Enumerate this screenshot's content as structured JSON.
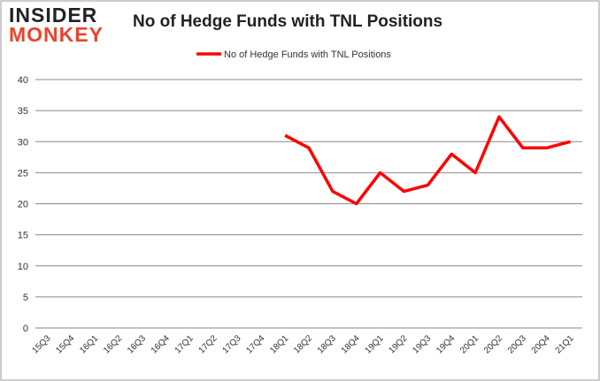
{
  "logo": {
    "line1": "INSIDER",
    "line2": "MONKEY"
  },
  "chart_data": {
    "type": "line",
    "title": "No of Hedge Funds with TNL Positions",
    "categories": [
      "15Q3",
      "15Q4",
      "16Q1",
      "16Q2",
      "16Q3",
      "16Q4",
      "17Q1",
      "17Q2",
      "17Q3",
      "17Q4",
      "18Q1",
      "18Q2",
      "18Q3",
      "18Q4",
      "19Q1",
      "19Q2",
      "19Q3",
      "19Q4",
      "20Q1",
      "20Q2",
      "20Q3",
      "20Q4",
      "21Q1"
    ],
    "series": [
      {
        "name": "No of Hedge Funds with TNL Positions",
        "color": "#ff0000",
        "values": [
          null,
          null,
          null,
          null,
          null,
          null,
          null,
          null,
          null,
          null,
          31,
          29,
          22,
          20,
          25,
          22,
          23,
          28,
          25,
          34,
          29,
          29,
          30
        ]
      }
    ],
    "ylim": [
      0,
      40
    ],
    "yticks": [
      0,
      5,
      10,
      15,
      20,
      25,
      30,
      35,
      40
    ],
    "grid": true,
    "legend": "top-center",
    "xlabel": "",
    "ylabel": ""
  }
}
